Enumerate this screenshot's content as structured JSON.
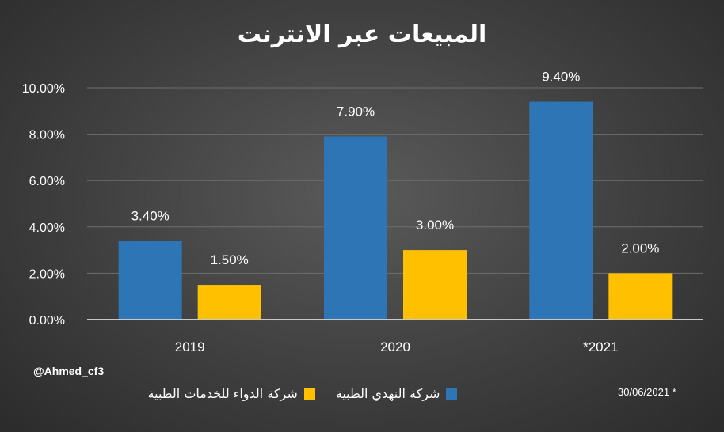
{
  "chart_data": {
    "type": "bar",
    "title": "المبيعات عبر الانترنت",
    "categories": [
      "2019",
      "2020",
      "*2021"
    ],
    "series": [
      {
        "name": "شركة النهدي الطبية",
        "color": "#2e75b6",
        "values": [
          3.4,
          7.9,
          9.4
        ],
        "labels": [
          "3.40%",
          "7.90%",
          "9.40%"
        ]
      },
      {
        "name": "شركة الدواء للخدمات الطبية",
        "color": "#ffc000",
        "values": [
          1.5,
          3.0,
          2.0
        ],
        "labels": [
          "1.50%",
          "3.00%",
          "2.00%"
        ]
      }
    ],
    "ylim": [
      0,
      10
    ],
    "yticks": [
      "0.00%",
      "2.00%",
      "4.00%",
      "6.00%",
      "8.00%",
      "10.00%"
    ],
    "grid": true,
    "legend": "bottom",
    "xlabel": "",
    "ylabel": ""
  },
  "credit": "@Ahmed_cf3",
  "footnote": "30/06/2021 *"
}
